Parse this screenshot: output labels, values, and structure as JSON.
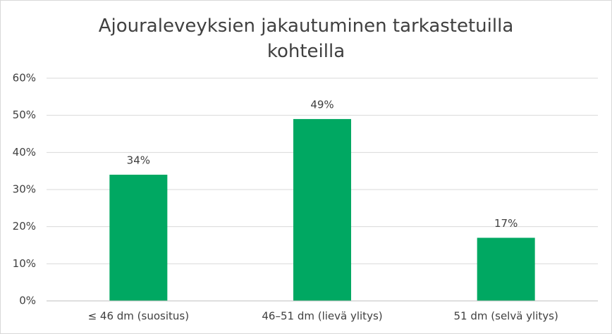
{
  "chart_data": {
    "type": "bar",
    "title": "Ajouraleveyksien jakautuminen tarkastetuilla kohteilla",
    "categories": [
      "≤ 46 dm (suositus)",
      "46–51 dm (lievä ylitys)",
      "51 dm (selvä ylitys)"
    ],
    "values": [
      34,
      49,
      17
    ],
    "value_labels": [
      "34%",
      "49%",
      "17%"
    ],
    "color": "#00a862",
    "ylim": [
      0,
      60
    ],
    "yticks": [
      {
        "value": 0,
        "label": "0%"
      },
      {
        "value": 10,
        "label": "10%"
      },
      {
        "value": 20,
        "label": "20%"
      },
      {
        "value": 30,
        "label": "30%"
      },
      {
        "value": 40,
        "label": "40%"
      },
      {
        "value": 50,
        "label": "50%"
      },
      {
        "value": 60,
        "label": "60%"
      }
    ],
    "grid": true
  }
}
